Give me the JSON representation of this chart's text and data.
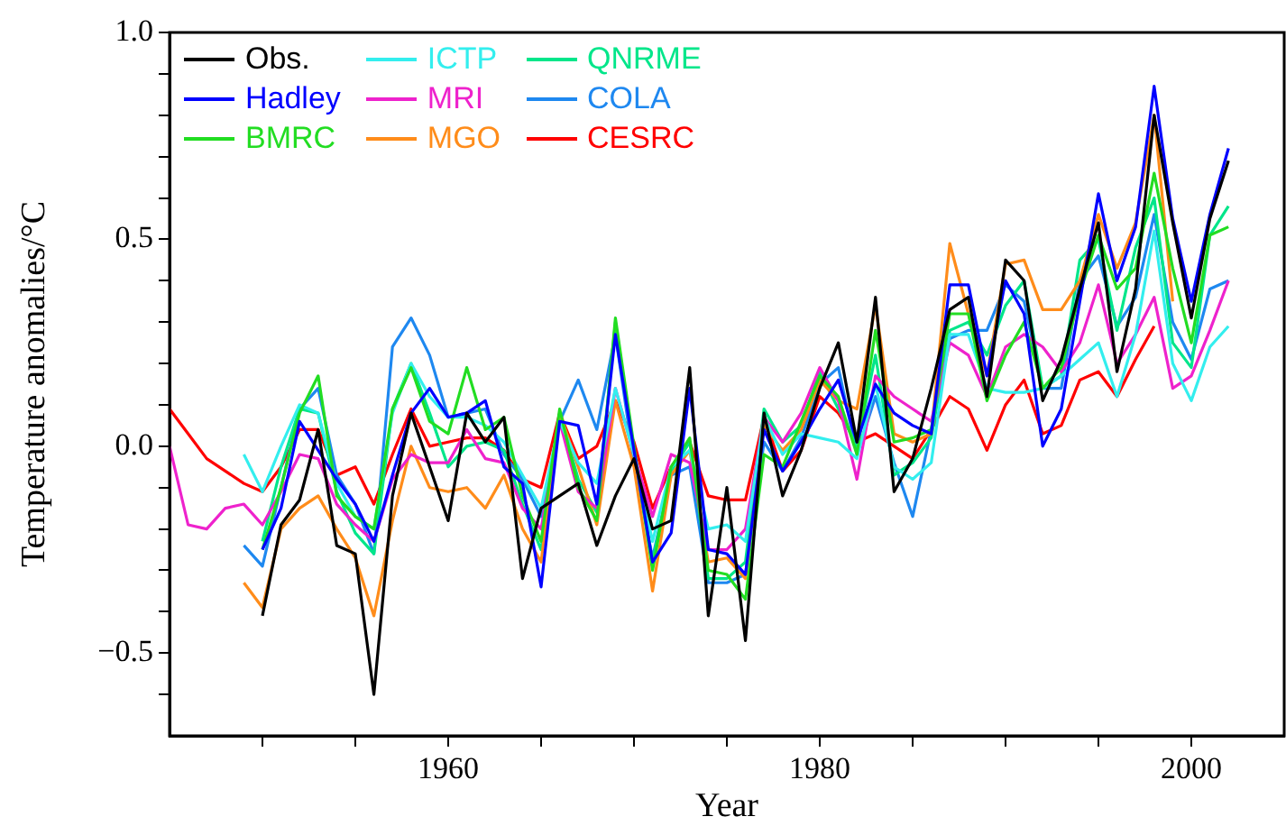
{
  "chart_data": {
    "type": "line",
    "xlabel": "Year",
    "ylabel": "Temperature anomalies/°C",
    "x": [
      1945,
      1946,
      1947,
      1948,
      1949,
      1950,
      1951,
      1952,
      1953,
      1954,
      1955,
      1956,
      1957,
      1958,
      1959,
      1960,
      1961,
      1962,
      1963,
      1964,
      1965,
      1966,
      1967,
      1968,
      1969,
      1970,
      1971,
      1972,
      1973,
      1974,
      1975,
      1976,
      1977,
      1978,
      1979,
      1980,
      1981,
      1982,
      1983,
      1984,
      1985,
      1986,
      1987,
      1988,
      1989,
      1990,
      1991,
      1992,
      1993,
      1994,
      1995,
      1996,
      1997,
      1998,
      1999,
      2000,
      2001,
      2002
    ],
    "xlim": [
      1945,
      2005
    ],
    "xticks": [
      {
        "value": 1950,
        "label": null
      },
      {
        "value": 1955,
        "label": null
      },
      1960,
      {
        "value": 1965,
        "label": null
      },
      {
        "value": 1970,
        "label": null
      },
      {
        "value": 1975,
        "label": null
      },
      1980,
      {
        "value": 1985,
        "label": null
      },
      {
        "value": 1990,
        "label": null
      },
      {
        "value": 1995,
        "label": null
      },
      2000
    ],
    "ylim": [
      -0.7,
      1.0
    ],
    "yticks": [
      {
        "value": -0.6,
        "label": null
      },
      {
        "value": -0.5,
        "label": "−0.5"
      },
      {
        "value": -0.4,
        "label": null
      },
      {
        "value": -0.3,
        "label": null
      },
      {
        "value": -0.2,
        "label": null
      },
      {
        "value": -0.1,
        "label": null
      },
      {
        "value": 0,
        "label": "0.0"
      },
      {
        "value": 0.1,
        "label": null
      },
      {
        "value": 0.2,
        "label": null
      },
      {
        "value": 0.3,
        "label": null
      },
      {
        "value": 0.4,
        "label": null
      },
      0.5,
      {
        "value": 0.6,
        "label": null
      },
      {
        "value": 0.7,
        "label": null
      },
      {
        "value": 0.8,
        "label": null
      },
      {
        "value": 0.9,
        "label": null
      },
      {
        "value": 1.0,
        "label": "1.0"
      }
    ],
    "grid": false,
    "legend": "top left",
    "marker": "none",
    "line_style": "solid",
    "series": [
      {
        "name": "Obs.",
        "color": "#000000",
        "values": [
          null,
          null,
          null,
          null,
          null,
          -0.41,
          -0.19,
          -0.13,
          0.04,
          -0.24,
          -0.26,
          -0.6,
          -0.12,
          0.08,
          -0.05,
          -0.18,
          0.08,
          0.01,
          0.07,
          -0.32,
          -0.15,
          -0.12,
          -0.09,
          -0.24,
          -0.12,
          -0.03,
          -0.2,
          -0.18,
          0.19,
          -0.41,
          -0.1,
          -0.47,
          0.08,
          -0.12,
          -0.01,
          0.14,
          0.25,
          0.01,
          0.36,
          -0.11,
          -0.03,
          0.14,
          0.33,
          0.36,
          0.12,
          0.45,
          0.4,
          0.11,
          0.21,
          0.38,
          0.54,
          0.18,
          0.38,
          0.8,
          0.54,
          0.31,
          0.55,
          0.69
        ]
      },
      {
        "name": "Hadley",
        "color": "#0000ff",
        "values": [
          null,
          null,
          null,
          null,
          null,
          -0.25,
          -0.15,
          0.06,
          -0.01,
          -0.08,
          -0.14,
          -0.23,
          -0.07,
          0.08,
          0.14,
          0.07,
          0.08,
          0.11,
          -0.05,
          -0.09,
          -0.34,
          0.06,
          0.05,
          -0.14,
          0.27,
          -0.01,
          -0.28,
          -0.21,
          0.14,
          -0.25,
          -0.26,
          -0.31,
          0.04,
          -0.06,
          0.01,
          0.09,
          0.16,
          0.01,
          0.15,
          0.08,
          0.05,
          0.03,
          0.39,
          0.39,
          0.17,
          0.4,
          0.32,
          0.0,
          0.09,
          0.35,
          0.61,
          0.4,
          0.53,
          0.87,
          0.55,
          0.35,
          0.56,
          0.72
        ]
      },
      {
        "name": "BMRC",
        "color": "#22dd22",
        "values": [
          null,
          null,
          null,
          null,
          null,
          -0.25,
          -0.1,
          0.08,
          0.17,
          -0.12,
          -0.17,
          -0.2,
          0.09,
          0.19,
          0.06,
          0.03,
          0.19,
          0.04,
          0.07,
          -0.12,
          -0.23,
          0.09,
          -0.1,
          -0.18,
          0.31,
          0.0,
          -0.3,
          -0.05,
          0.02,
          -0.3,
          -0.31,
          -0.37,
          -0.02,
          -0.05,
          0.06,
          0.17,
          0.12,
          -0.02,
          0.28,
          0.01,
          0.02,
          0.04,
          0.32,
          0.32,
          0.11,
          0.22,
          0.3,
          0.14,
          0.19,
          0.37,
          0.51,
          0.38,
          0.43,
          0.66,
          0.43,
          0.25,
          0.51,
          0.53
        ]
      },
      {
        "name": "ICTP",
        "color": "#33eeee",
        "values": [
          null,
          null,
          null,
          null,
          -0.02,
          -0.11,
          0.0,
          0.1,
          0.08,
          -0.09,
          -0.17,
          -0.2,
          0.08,
          0.2,
          0.12,
          0.07,
          0.07,
          0.05,
          0.01,
          -0.07,
          -0.15,
          0.06,
          -0.04,
          -0.09,
          0.14,
          -0.02,
          -0.23,
          -0.05,
          -0.01,
          -0.2,
          -0.19,
          -0.23,
          0.07,
          -0.02,
          0.03,
          0.02,
          0.01,
          -0.03,
          0.15,
          -0.05,
          -0.08,
          -0.04,
          0.27,
          0.27,
          0.14,
          0.13,
          0.13,
          0.14,
          0.17,
          0.21,
          0.25,
          0.12,
          0.27,
          0.52,
          0.2,
          0.11,
          0.24,
          0.29
        ]
      },
      {
        "name": "MRI",
        "color": "#ee22cc",
        "values": [
          0.0,
          -0.19,
          -0.2,
          -0.15,
          -0.14,
          -0.19,
          -0.11,
          -0.02,
          -0.03,
          -0.14,
          -0.19,
          -0.23,
          -0.08,
          -0.02,
          -0.04,
          -0.04,
          0.04,
          -0.03,
          -0.04,
          -0.15,
          -0.2,
          0.06,
          -0.11,
          -0.15,
          0.14,
          -0.02,
          -0.17,
          -0.02,
          -0.04,
          -0.25,
          -0.25,
          -0.2,
          0.07,
          0.01,
          0.08,
          0.19,
          0.11,
          -0.08,
          0.17,
          0.12,
          0.09,
          0.06,
          0.25,
          0.22,
          0.12,
          0.24,
          0.27,
          0.24,
          0.18,
          0.25,
          0.39,
          0.2,
          0.27,
          0.36,
          0.14,
          0.17,
          0.28,
          0.4
        ]
      },
      {
        "name": "MGO",
        "color": "#ff8c1a",
        "values": [
          null,
          null,
          null,
          null,
          -0.33,
          -0.39,
          -0.2,
          -0.15,
          -0.12,
          -0.2,
          -0.27,
          -0.41,
          -0.18,
          0.0,
          -0.1,
          -0.11,
          -0.1,
          -0.15,
          -0.07,
          -0.2,
          -0.28,
          0.08,
          -0.05,
          -0.19,
          0.11,
          -0.05,
          -0.35,
          -0.07,
          -0.01,
          -0.28,
          -0.27,
          -0.32,
          0.05,
          -0.01,
          0.04,
          0.16,
          0.11,
          0.09,
          0.34,
          0.03,
          0.01,
          0.03,
          0.49,
          0.32,
          0.17,
          0.44,
          0.45,
          0.33,
          0.33,
          0.4,
          0.56,
          0.43,
          0.54,
          0.8,
          0.35,
          null,
          null,
          null
        ]
      },
      {
        "name": "QNRME",
        "color": "#00e68a",
        "values": [
          null,
          null,
          null,
          null,
          null,
          -0.23,
          -0.05,
          0.09,
          0.08,
          -0.11,
          -0.21,
          -0.26,
          0.09,
          0.2,
          0.08,
          -0.05,
          0.0,
          0.01,
          -0.01,
          -0.14,
          -0.25,
          0.08,
          -0.08,
          -0.16,
          0.3,
          -0.01,
          -0.28,
          -0.06,
          0.01,
          -0.32,
          -0.32,
          -0.28,
          0.09,
          0.01,
          0.05,
          0.18,
          0.09,
          0.0,
          0.22,
          -0.07,
          -0.04,
          0.02,
          0.28,
          0.3,
          0.22,
          0.34,
          0.4,
          0.14,
          0.17,
          0.45,
          0.5,
          0.28,
          0.48,
          0.6,
          0.25,
          0.19,
          0.51,
          0.58
        ]
      },
      {
        "name": "COLA",
        "color": "#1e88f0",
        "values": [
          null,
          null,
          null,
          null,
          -0.24,
          -0.29,
          -0.1,
          0.09,
          0.14,
          -0.07,
          -0.14,
          -0.26,
          0.24,
          0.31,
          0.22,
          0.07,
          0.08,
          0.09,
          -0.02,
          -0.08,
          -0.17,
          0.06,
          0.16,
          0.04,
          0.27,
          -0.04,
          -0.27,
          -0.07,
          -0.05,
          -0.33,
          -0.33,
          -0.31,
          0.01,
          -0.06,
          0.02,
          0.15,
          0.19,
          -0.02,
          0.12,
          -0.04,
          -0.17,
          0.04,
          0.26,
          0.28,
          0.28,
          0.39,
          0.35,
          0.14,
          0.14,
          0.4,
          0.46,
          0.29,
          0.36,
          0.56,
          0.3,
          0.21,
          0.38,
          0.4
        ]
      },
      {
        "name": "CESRC",
        "color": "#ff0000",
        "values": [
          0.09,
          0.03,
          -0.03,
          -0.06,
          -0.09,
          -0.11,
          -0.05,
          0.04,
          0.04,
          -0.07,
          -0.05,
          -0.14,
          -0.02,
          0.09,
          0.0,
          0.01,
          0.02,
          0.02,
          -0.01,
          -0.08,
          -0.1,
          0.08,
          -0.03,
          0.0,
          0.11,
          0.01,
          -0.15,
          -0.05,
          0.01,
          -0.12,
          -0.13,
          -0.13,
          0.07,
          -0.06,
          -0.01,
          0.12,
          0.08,
          0.01,
          0.03,
          0.0,
          -0.03,
          0.04,
          0.12,
          0.09,
          -0.01,
          0.1,
          0.16,
          0.03,
          0.05,
          0.16,
          0.18,
          0.12,
          0.21,
          0.29,
          null,
          null,
          null,
          null
        ]
      }
    ]
  }
}
